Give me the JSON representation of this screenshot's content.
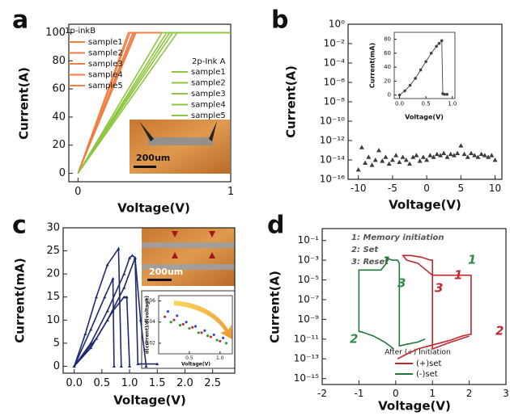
{
  "chart_data": [
    {
      "panel_label": "a",
      "type": "line",
      "xlabel": "Voltage(V)",
      "ylabel": "Current(A)",
      "xlim": [
        -0.06,
        1
      ],
      "xticks": [
        0,
        1
      ],
      "ylim": [
        -6,
        106
      ],
      "yticks": [
        0,
        20,
        40,
        60,
        80,
        100
      ],
      "legend_titles": [
        "1p-inkB",
        "2p-Ink A"
      ],
      "inset_label": "200um",
      "series": [
        {
          "name": "sample1",
          "color": "#f07f45",
          "x": [
            0,
            0.33,
            0.55
          ],
          "values": [
            0,
            100,
            100
          ]
        },
        {
          "name": "sample2",
          "color": "#f07f45",
          "x": [
            0,
            0.34,
            0.55
          ],
          "values": [
            0,
            100,
            100
          ]
        },
        {
          "name": "sample3",
          "color": "#f07f45",
          "x": [
            0,
            0.36,
            0.55
          ],
          "values": [
            0,
            100,
            100
          ]
        },
        {
          "name": "sample4",
          "color": "#f07f45",
          "x": [
            0,
            0.37,
            0.55
          ],
          "values": [
            0,
            100,
            100
          ]
        },
        {
          "name": "sample5",
          "color": "#f07f45",
          "x": [
            0,
            0.38,
            0.55
          ],
          "values": [
            0,
            100,
            100
          ]
        },
        {
          "name": "sample1",
          "color": "#8dc63f",
          "x": [
            0,
            0.55,
            1
          ],
          "values": [
            0,
            100,
            100
          ]
        },
        {
          "name": "sample2",
          "color": "#8dc63f",
          "x": [
            0,
            0.58,
            1
          ],
          "values": [
            0,
            100,
            100
          ]
        },
        {
          "name": "sample3",
          "color": "#8dc63f",
          "x": [
            0,
            0.6,
            1
          ],
          "values": [
            0,
            100,
            100
          ]
        },
        {
          "name": "sample4",
          "color": "#8dc63f",
          "x": [
            0,
            0.62,
            1
          ],
          "values": [
            0,
            100,
            100
          ]
        },
        {
          "name": "sample5",
          "color": "#8dc63f",
          "x": [
            0,
            0.65,
            1
          ],
          "values": [
            0,
            100,
            100
          ]
        }
      ]
    },
    {
      "panel_label": "b",
      "type": "scatter",
      "log_y": true,
      "markers": "triangle",
      "xlabel": "Voltage(V)",
      "ylabel": "Current(A)",
      "xlim": [
        -11.5,
        11
      ],
      "xticks": [
        -10,
        -5,
        0,
        5,
        10
      ],
      "ylim": [
        1e-16,
        1
      ],
      "yticks": [
        {
          "value": 1e-16,
          "label": "10⁻¹⁶"
        },
        {
          "value": 1e-14,
          "label": "10⁻¹⁴"
        },
        {
          "value": 1e-12,
          "label": "10⁻¹²"
        },
        {
          "value": 1e-10,
          "label": "10⁻¹⁰"
        },
        {
          "value": 1e-08,
          "label": "10⁻⁸"
        },
        {
          "value": 1e-06,
          "label": "10⁻⁶"
        },
        {
          "value": 0.0001,
          "label": "10⁻⁴"
        },
        {
          "value": 0.01,
          "label": "10⁻²"
        },
        {
          "value": 1,
          "label": "10⁰"
        }
      ],
      "series": [
        {
          "color": "#3c3c3c",
          "x": [
            -10,
            -9.5,
            -9,
            -8.5,
            -8,
            -7.5,
            -7,
            -6.5,
            -6,
            -5.5,
            -5,
            -4.5,
            -4,
            -3.5,
            -3,
            -2.5,
            -2,
            -1.5,
            -1,
            -0.5,
            0,
            0.5,
            1,
            1.5,
            2,
            2.5,
            3,
            3.5,
            4,
            4.5,
            5,
            5.5,
            6,
            6.5,
            7,
            7.5,
            8,
            8.5,
            9,
            9.5,
            10
          ],
          "values": [
            1e-15,
            2e-13,
            5e-15,
            2e-14,
            3e-15,
            1e-14,
            1e-13,
            8e-15,
            2e-14,
            4e-15,
            1e-14,
            3e-14,
            6e-15,
            2e-14,
            1e-14,
            4e-15,
            2e-14,
            3e-14,
            8e-15,
            2e-14,
            1e-14,
            3e-14,
            2e-14,
            4e-14,
            3e-14,
            5e-14,
            2e-14,
            4e-14,
            3e-14,
            5e-14,
            3e-13,
            4e-14,
            2e-14,
            5e-14,
            3e-14,
            2e-14,
            4e-14,
            3e-14,
            2e-14,
            3e-14,
            1e-14
          ]
        }
      ]
    },
    {
      "type": "line",
      "markers": "circle",
      "xlabel": "Voltage(V)",
      "ylabel": "Current(mA)",
      "xlim": [
        -0.1,
        1.05
      ],
      "xticks": [
        {
          "value": 0,
          "label": "0.0"
        },
        0.5,
        {
          "value": 1,
          "label": "1.0"
        }
      ],
      "ylim": [
        -5,
        90
      ],
      "yticks": [
        0,
        20,
        40,
        60,
        80
      ],
      "series": [
        {
          "color": "#444444",
          "x": [
            0,
            0.1,
            0.2,
            0.3,
            0.4,
            0.5,
            0.6,
            0.7,
            0.75,
            0.8,
            0.82,
            0.85,
            0.9
          ],
          "values": [
            0,
            6,
            14,
            24,
            36,
            48,
            60,
            70,
            74,
            78,
            2,
            1,
            1
          ]
        }
      ]
    },
    {
      "panel_label": "c",
      "type": "line",
      "markers": "triangle",
      "xlabel": "Voltage(V)",
      "ylabel": "Current(mA)",
      "xlim": [
        -0.2,
        2.9
      ],
      "xticks": [
        {
          "value": 0,
          "label": "0.0"
        },
        0.5,
        {
          "value": 1,
          "label": "1.0"
        },
        1.5,
        {
          "value": 2,
          "label": "2.0"
        },
        2.5
      ],
      "ylim": [
        -1.5,
        30
      ],
      "yticks": [
        0,
        5,
        10,
        15,
        20,
        25,
        30
      ],
      "inset_label": "200um",
      "series": [
        {
          "color": "#1f2a6e",
          "x": [
            0,
            0.3,
            0.6,
            0.9,
            1.0,
            1.05,
            1.1,
            1.2,
            1.3
          ],
          "values": [
            0,
            5,
            12,
            20,
            23.5,
            24,
            23.5,
            10,
            0
          ]
        },
        {
          "color": "#1f2a6e",
          "x": [
            0,
            0.2,
            0.4,
            0.6,
            0.8,
            0.85
          ],
          "values": [
            0,
            7,
            15,
            22,
            25.5,
            0
          ]
        },
        {
          "color": "#1f2a6e",
          "x": [
            0,
            0.3,
            0.55,
            0.7,
            0.72
          ],
          "values": [
            0,
            8,
            15,
            19,
            0
          ]
        },
        {
          "color": "#1f2a6e",
          "x": [
            0,
            0.4,
            0.7,
            0.9,
            0.95,
            1.0
          ],
          "values": [
            0,
            6,
            12,
            15,
            15,
            0
          ]
        },
        {
          "color": "#1f2a6e",
          "x": [
            0,
            0.3,
            0.6,
            0.9,
            1.1,
            1.15,
            1.5
          ],
          "values": [
            0,
            4,
            10,
            17,
            23.5,
            0.5,
            0.5
          ]
        }
      ]
    },
    {
      "type": "scatter",
      "markers": "circle",
      "xlabel": "Voltage(V)",
      "ylabel": "d(current)/d(voltage)",
      "xlim": [
        0,
        1.2
      ],
      "xticks": [
        0.5,
        {
          "value": 1,
          "label": "1.0"
        }
      ],
      "ylim": [
        0.01,
        0.065
      ],
      "yticks": [
        0.02,
        0.04,
        0.06
      ],
      "series": [
        {
          "color": "#d03030",
          "x": [
            0.1,
            0.25,
            0.4,
            0.55,
            0.7,
            0.85,
            1.0
          ],
          "values": [
            0.045,
            0.042,
            0.038,
            0.035,
            0.03,
            0.026,
            0.022
          ]
        },
        {
          "color": "#3050d0",
          "x": [
            0.15,
            0.3,
            0.45,
            0.6,
            0.75,
            0.9,
            1.05
          ],
          "values": [
            0.05,
            0.046,
            0.04,
            0.036,
            0.032,
            0.028,
            0.025
          ]
        },
        {
          "color": "#30a040",
          "x": [
            0.2,
            0.35,
            0.5,
            0.65,
            0.8,
            0.95,
            1.1
          ],
          "values": [
            0.04,
            0.037,
            0.034,
            0.03,
            0.027,
            0.023,
            0.02
          ]
        }
      ]
    },
    {
      "panel_label": "d",
      "type": "line",
      "log_y": true,
      "xlabel": "Voltage(V)",
      "ylabel": "Current(A)",
      "xlim": [
        -2,
        3
      ],
      "xticks": [
        -2,
        -1,
        0,
        1,
        2,
        3
      ],
      "ylim": [
        2.5e-16,
        1.6
      ],
      "yticks": [
        {
          "value": 1e-15,
          "label": "10⁻¹⁵"
        },
        {
          "value": 1e-13,
          "label": "10⁻¹³"
        },
        {
          "value": 1e-11,
          "label": "10⁻¹¹"
        },
        {
          "value": 1e-09,
          "label": "10⁻⁹"
        },
        {
          "value": 1e-07,
          "label": "10⁻⁷"
        },
        {
          "value": 1e-05,
          "label": "10⁻⁵"
        },
        {
          "value": 0.001,
          "label": "10⁻³"
        },
        {
          "value": 0.1,
          "label": "10⁻¹"
        }
      ],
      "legend_title": "After (+) Initiation",
      "annotations": [
        "1: Memory initiation",
        "2: Set",
        "3: Reset"
      ],
      "step_labels": [
        {
          "text": "1",
          "color": "#2e8b4a"
        },
        {
          "text": "3",
          "color": "#2e8b4a"
        },
        {
          "text": "2",
          "color": "#2e8b4a"
        },
        {
          "text": "1",
          "color": "#c0272d"
        },
        {
          "text": "3",
          "color": "#c0272d"
        },
        {
          "text": "2",
          "color": "#c0272d"
        }
      ],
      "series": [
        {
          "name": "(+)set",
          "color": "#c0272d",
          "x": [
            0.05,
            0.3,
            0.6,
            0.9,
            1.2,
            1.5,
            1.8,
            2.0,
            2.05,
            2.05,
            1.5,
            1.0,
            0.6,
            0.3,
            0.2,
            0.4,
            0.7,
            0.95,
            1.0,
            1.0,
            1.5,
            2.0
          ],
          "values": [
            1e-13,
            3e-13,
            1e-12,
            2e-12,
            4e-12,
            8e-12,
            2e-11,
            3e-11,
            3e-11,
            3e-05,
            3e-05,
            3e-05,
            0.0005,
            0.001,
            0.003,
            0.003,
            0.002,
            0.001,
            0.001,
            1e-12,
            5e-12,
            2e-11
          ]
        },
        {
          "name": "(-)set",
          "color": "#1f7a3a",
          "x": [
            -0.05,
            -0.3,
            -0.6,
            -0.9,
            -1.0,
            -1.0,
            -0.7,
            -0.4,
            -0.25,
            -0.2,
            -0.3,
            -0.1,
            0.05,
            0.1,
            0.1,
            0.3,
            0.6,
            0.8
          ],
          "values": [
            1e-12,
            5e-12,
            2e-11,
            5e-11,
            6e-11,
            0.0001,
            0.0001,
            0.0001,
            0.0005,
            0.002,
            0.002,
            0.001,
            0.001,
            0.0005,
            2e-12,
            3e-12,
            5e-12,
            1e-11
          ]
        }
      ]
    }
  ]
}
